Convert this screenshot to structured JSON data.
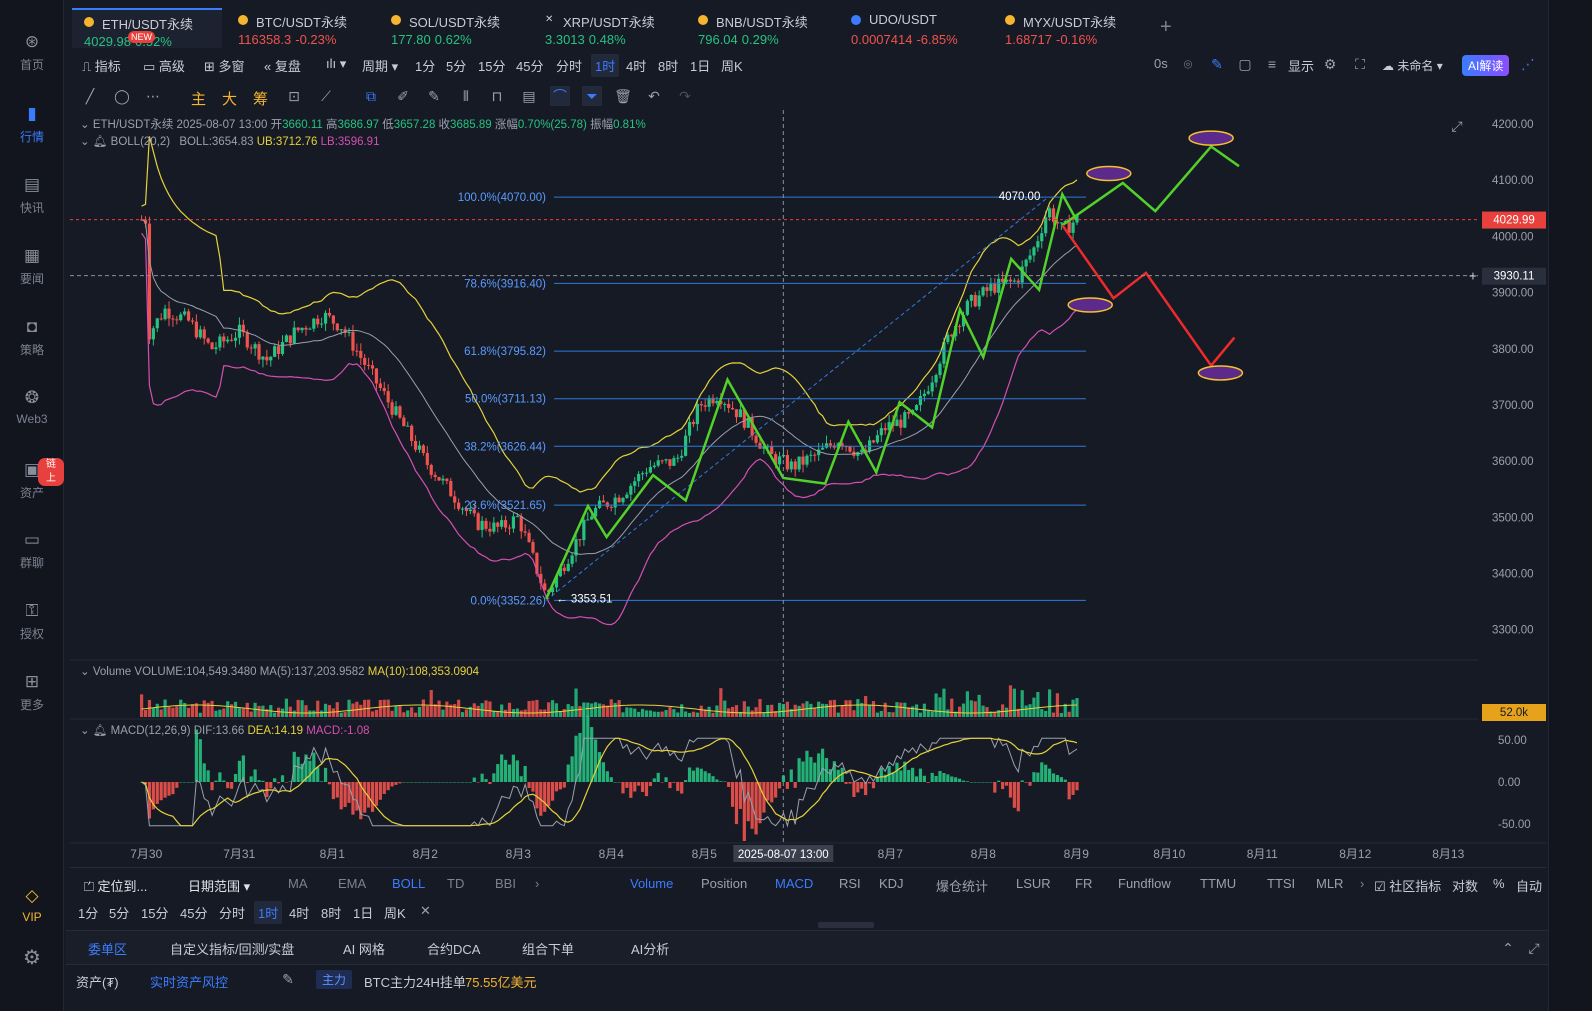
{
  "nav": {
    "items": [
      {
        "label": "首页",
        "icon": "home-icon"
      },
      {
        "label": "行情",
        "icon": "market-icon"
      },
      {
        "label": "快讯",
        "icon": "news-flash-icon"
      },
      {
        "label": "要闻",
        "icon": "headline-icon"
      },
      {
        "label": "策略",
        "icon": "robot-icon"
      },
      {
        "label": "Web3",
        "icon": "web3-icon"
      },
      {
        "label": "资产",
        "icon": "wallet-icon"
      },
      {
        "label": "群聊",
        "icon": "chat-icon"
      },
      {
        "label": "授权",
        "icon": "key-icon"
      },
      {
        "label": "更多",
        "icon": "grid-icon"
      }
    ],
    "assets_badge": "链上",
    "vip": "VIP"
  },
  "tabs": [
    {
      "name": "ETH/USDT永续",
      "price": "4029.98",
      "change": "0.52%",
      "dir": "up",
      "badge": "NEW",
      "color": "#f5b52e"
    },
    {
      "name": "BTC/USDT永续",
      "price": "116358.3",
      "change": "-0.23%",
      "dir": "dn",
      "color": "#f5b52e"
    },
    {
      "name": "SOL/USDT永续",
      "price": "177.80",
      "change": "0.62%",
      "dir": "up",
      "color": "#f5b52e"
    },
    {
      "name": "XRP/USDT永续",
      "price": "3.3013",
      "change": "0.48%",
      "dir": "up",
      "color": "#c9ccd4"
    },
    {
      "name": "BNB/USDT永续",
      "price": "796.04",
      "change": "0.29%",
      "dir": "up",
      "color": "#f5b52e"
    },
    {
      "name": "UDO/USDT",
      "price": "0.0007414",
      "change": "-6.85%",
      "dir": "dn",
      "color": "#3b7cff"
    },
    {
      "name": "MYX/USDT永续",
      "price": "1.68717",
      "change": "-0.16%",
      "dir": "dn",
      "color": "#f5b52e"
    }
  ],
  "toolbar": {
    "indicator": "指标",
    "advanced": "高级",
    "multi": "多窗",
    "replay": "复盘",
    "period": "周期",
    "timeframes": [
      "1分",
      "5分",
      "15分",
      "45分",
      "分时",
      "1时",
      "4时",
      "8时",
      "1日",
      "周K"
    ],
    "active_tf": "1时",
    "countdown": "0s",
    "display": "显示",
    "unnamed": "未命名",
    "ai": "AI解读",
    "draw_zhu": "主",
    "draw_da": "大",
    "draw_chou": "筹"
  },
  "legend": {
    "line1": {
      "symbol": "ETH/USDT永续",
      "time": "2025-08-07 13:00",
      "open_label": "开",
      "open": "3660.11",
      "high_label": "高",
      "high": "3686.97",
      "low_label": "低",
      "low": "3657.28",
      "close_label": "收",
      "close": "3685.89",
      "chg_label": "涨幅",
      "chg": "0.70%(25.78)",
      "amp_label": "振幅",
      "amp": "0.81%"
    },
    "boll": {
      "name": "BOLL(20,2)",
      "mid": "BOLL:3654.83",
      "ub": "UB:3712.76",
      "lb": "LB:3596.91"
    },
    "volume": {
      "name": "Volume",
      "vol": "VOLUME:104,549.3480",
      "ma5": "MA(5):137,203.9582",
      "ma10": "MA(10):108,353.0904"
    },
    "macd": {
      "name": "MACD(12,26,9)",
      "dif": "DIF:13.66",
      "dea": "DEA:14.19",
      "macd": "MACD:-1.08"
    }
  },
  "chart_data": {
    "type": "candlestick",
    "x_labels": [
      "7月30",
      "7月31",
      "8月1",
      "8月2",
      "8月3",
      "8月4",
      "8月5",
      "8月6",
      "8月7",
      "8月8",
      "8月9",
      "8月10",
      "8月11",
      "8月12",
      "8月13"
    ],
    "y_ticks": [
      4200,
      4100,
      4000,
      3900,
      3800,
      3700,
      3600,
      3500,
      3400,
      3300
    ],
    "ylim": [
      3255,
      4225
    ],
    "current_price": "4029.99",
    "crosshair_price": "3930.11",
    "crosshair_time": "2025-08-07 13:00",
    "volume_label": "52.0k",
    "macd_ticks": [
      "50.00",
      "0.00",
      "-50.00"
    ],
    "fib_levels": [
      {
        "label": "100.0%(4070.00)",
        "value": 4070.0
      },
      {
        "label": "78.6%(3916.40)",
        "value": 3916.4
      },
      {
        "label": "61.8%(3795.82)",
        "value": 3795.82
      },
      {
        "label": "50.0%(3711.13)",
        "value": 3711.13
      },
      {
        "label": "38.2%(3626.44)",
        "value": 3626.44
      },
      {
        "label": "23.6%(3521.65)",
        "value": 3521.65
      },
      {
        "label": "0.0%(3352.26)",
        "value": 3352.26
      }
    ],
    "high_marker": "4070.00",
    "low_marker": "3353.51",
    "price_path": [
      [
        0.0,
        3820
      ],
      [
        0.2,
        3870
      ],
      [
        0.45,
        3850
      ],
      [
        0.7,
        3800
      ],
      [
        1.0,
        3830
      ],
      [
        1.3,
        3780
      ],
      [
        1.6,
        3830
      ],
      [
        1.9,
        3860
      ],
      [
        2.1,
        3840
      ],
      [
        2.4,
        3760
      ],
      [
        2.7,
        3680
      ],
      [
        3.0,
        3600
      ],
      [
        3.3,
        3540
      ],
      [
        3.55,
        3490
      ],
      [
        3.8,
        3480
      ],
      [
        4.0,
        3500
      ],
      [
        4.15,
        3430
      ],
      [
        4.3,
        3360
      ],
      [
        4.5,
        3420
      ],
      [
        4.8,
        3510
      ],
      [
        5.1,
        3540
      ],
      [
        5.4,
        3590
      ],
      [
        5.7,
        3600
      ],
      [
        5.95,
        3700
      ],
      [
        6.15,
        3720
      ],
      [
        6.4,
        3680
      ],
      [
        6.7,
        3610
      ],
      [
        6.95,
        3590
      ],
      [
        7.2,
        3610
      ],
      [
        7.45,
        3640
      ],
      [
        7.7,
        3610
      ],
      [
        7.95,
        3660
      ],
      [
        8.25,
        3680
      ],
      [
        8.45,
        3750
      ],
      [
        8.65,
        3830
      ],
      [
        8.85,
        3880
      ],
      [
        9.1,
        3910
      ],
      [
        9.35,
        3920
      ],
      [
        9.55,
        3980
      ],
      [
        9.7,
        4050
      ],
      [
        9.85,
        4010
      ],
      [
        10.0,
        4030
      ]
    ],
    "projection_up": [
      [
        9.85,
        4020
      ],
      [
        10.5,
        4095
      ],
      [
        10.85,
        4045
      ],
      [
        11.45,
        4160
      ],
      [
        11.75,
        4125
      ]
    ],
    "projection_down": [
      [
        9.85,
        4020
      ],
      [
        10.4,
        3890
      ],
      [
        10.75,
        3935
      ],
      [
        11.45,
        3770
      ],
      [
        11.7,
        3820
      ]
    ],
    "target_ellipses": [
      [
        10.35,
        4112
      ],
      [
        11.45,
        4175
      ],
      [
        10.15,
        3878
      ],
      [
        11.55,
        3757
      ]
    ]
  },
  "indicator_bar": {
    "locate": "定位到...",
    "date_range": "日期范围",
    "main": [
      "MA",
      "EMA",
      "BOLL",
      "TD",
      "BBI"
    ],
    "active_main": "BOLL",
    "sub": [
      "Volume",
      "Position",
      "MACD",
      "RSI",
      "KDJ",
      "爆仓统计",
      "LSUR",
      "FR",
      "Fundflow",
      "TTMU",
      "TTSI",
      "MLR"
    ],
    "active_sub": [
      "Volume",
      "MACD"
    ],
    "community": "社区指标",
    "log": "对数",
    "pct": "%",
    "auto": "自动"
  },
  "timeframes2": [
    "1分",
    "5分",
    "15分",
    "45分",
    "分时",
    "1时",
    "4时",
    "8时",
    "1日",
    "周K"
  ],
  "bottom_tabs": [
    "委单区",
    "自定义指标/回测/实盘",
    "AI 网格",
    "合约DCA",
    "组合下单",
    "AI分析"
  ],
  "status": {
    "assets": "资产(₮)",
    "risk": "实时资产风控",
    "main_tag": "主力",
    "btc_text": "BTC主力24H挂单",
    "btc_value": "75.55亿美元"
  },
  "colors": {
    "up": "#26c281",
    "down": "#f0534d",
    "accent": "#3b7cff",
    "boll_band": "#e6d23a",
    "boll_mid": "#9aa0ad",
    "boll_lb": "#d44fb2",
    "fib": "#2f7bd8",
    "projection_up": "#52d12b",
    "projection_down": "#ee2b2b"
  }
}
